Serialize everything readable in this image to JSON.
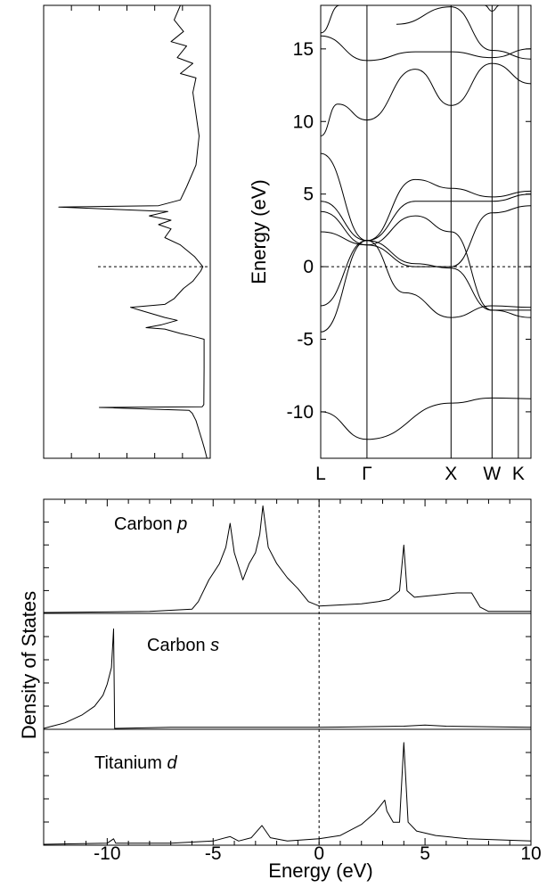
{
  "chart_data": [
    {
      "type": "line",
      "panel": "total-dos-rotated",
      "title": "",
      "xlabel": "",
      "ylabel": "",
      "x_axis": "density of states",
      "y_axis": "energy (eV)",
      "ylim": [
        -13.2,
        18
      ],
      "fermi_level": 0,
      "series": [
        {
          "points": [
            [
              0.05,
              -13.2
            ],
            [
              0.12,
              -12.6
            ],
            [
              0.2,
              -12.0
            ],
            [
              0.3,
              -11.3
            ],
            [
              0.4,
              -10.6
            ],
            [
              0.52,
              -10.1
            ],
            [
              0.62,
              -9.9
            ],
            [
              3.5,
              -9.7
            ],
            [
              0.2,
              -9.65
            ],
            [
              0.15,
              -9.5
            ],
            [
              0.14,
              -7.0
            ],
            [
              0.14,
              -5.0
            ],
            [
              0.5,
              -4.8
            ],
            [
              0.9,
              -4.6
            ],
            [
              1.4,
              -4.3
            ],
            [
              2.0,
              -4.2
            ],
            [
              1.5,
              -4.0
            ],
            [
              1.0,
              -3.7
            ],
            [
              1.4,
              -3.5
            ],
            [
              2.2,
              -3.0
            ],
            [
              2.5,
              -2.8
            ],
            [
              1.4,
              -2.6
            ],
            [
              1.1,
              -2.2
            ],
            [
              0.8,
              -1.5
            ],
            [
              0.5,
              -1.0
            ],
            [
              0.25,
              -0.3
            ],
            [
              0.18,
              0.0
            ],
            [
              0.45,
              0.7
            ],
            [
              0.9,
              1.5
            ],
            [
              1.4,
              2.0
            ],
            [
              1.2,
              2.6
            ],
            [
              1.6,
              2.9
            ],
            [
              1.2,
              3.2
            ],
            [
              1.9,
              3.5
            ],
            [
              1.3,
              3.8
            ],
            [
              4.8,
              4.1
            ],
            [
              1.6,
              4.2
            ],
            [
              0.9,
              4.6
            ],
            [
              0.7,
              5.5
            ],
            [
              0.4,
              7.0
            ],
            [
              0.3,
              9.0
            ],
            [
              0.4,
              10.5
            ],
            [
              0.5,
              12.0
            ],
            [
              0.4,
              13.0
            ],
            [
              0.9,
              13.3
            ],
            [
              0.5,
              14.0
            ],
            [
              1.0,
              14.4
            ],
            [
              0.7,
              15.2
            ],
            [
              1.2,
              15.5
            ],
            [
              0.8,
              16.2
            ],
            [
              1.1,
              17.0
            ],
            [
              0.9,
              18.0
            ]
          ]
        }
      ]
    },
    {
      "type": "line",
      "panel": "band-structure",
      "title": "",
      "xlabel": "",
      "ylabel": "Energy (eV)",
      "xlim": [
        0,
        1
      ],
      "ylim": [
        -13.2,
        18
      ],
      "y_ticks": [
        -10,
        -5,
        0,
        5,
        10,
        15
      ],
      "k_points": [
        {
          "label": "L",
          "x": 0.0
        },
        {
          "label": "Γ",
          "x": 0.22
        },
        {
          "label": "X",
          "x": 0.62
        },
        {
          "label": "W",
          "x": 0.815
        },
        {
          "label": "K",
          "x": 0.94
        }
      ],
      "fermi_level": 0,
      "series": [
        {
          "points": [
            [
              0,
              -10.0
            ],
            [
              0.22,
              -11.9
            ],
            [
              0.62,
              -9.4
            ],
            [
              0.815,
              -9.05
            ],
            [
              1,
              -9.1
            ]
          ]
        },
        {
          "points": [
            [
              0,
              -4.5
            ],
            [
              0.22,
              1.8
            ],
            [
              0.4,
              -1.8
            ],
            [
              0.62,
              -3.5
            ],
            [
              0.815,
              -2.7
            ],
            [
              1,
              -2.8
            ]
          ]
        },
        {
          "points": [
            [
              0,
              -2.7
            ],
            [
              0.22,
              1.8
            ],
            [
              0.45,
              0.2
            ],
            [
              0.62,
              -0.1
            ],
            [
              0.815,
              -3.0
            ],
            [
              1,
              -3.5
            ]
          ]
        },
        {
          "points": [
            [
              0,
              2.4
            ],
            [
              0.22,
              1.5
            ],
            [
              0.45,
              0.0
            ],
            [
              0.62,
              0.0
            ],
            [
              0.815,
              3.7
            ],
            [
              1,
              4.2
            ]
          ]
        },
        {
          "points": [
            [
              0,
              3.8
            ],
            [
              0.22,
              1.5
            ],
            [
              0.45,
              3.5
            ],
            [
              0.62,
              2.4
            ],
            [
              0.815,
              -3.0
            ],
            [
              1,
              -3.0
            ]
          ]
        },
        {
          "points": [
            [
              0,
              4.5
            ],
            [
              0.22,
              1.8
            ],
            [
              0.45,
              4.5
            ],
            [
              0.62,
              4.5
            ],
            [
              0.815,
              4.5
            ],
            [
              1,
              5.0
            ]
          ]
        },
        {
          "points": [
            [
              0,
              7.8
            ],
            [
              0.22,
              1.8
            ],
            [
              0.45,
              6.0
            ],
            [
              0.62,
              5.4
            ],
            [
              0.815,
              4.8
            ],
            [
              1,
              5.2
            ]
          ]
        },
        {
          "points": [
            [
              0,
              9.0
            ],
            [
              0.08,
              11.2
            ],
            [
              0.22,
              10.1
            ],
            [
              0.45,
              13.6
            ],
            [
              0.62,
              11.1
            ],
            [
              0.815,
              14.0
            ],
            [
              1,
              12.6
            ]
          ]
        },
        {
          "points": [
            [
              0,
              15.9
            ],
            [
              0.22,
              14.2
            ],
            [
              0.45,
              14.8
            ],
            [
              0.62,
              14.8
            ],
            [
              0.815,
              14.4
            ],
            [
              1,
              15.0
            ]
          ]
        },
        {
          "points": [
            [
              0,
              16.1
            ],
            [
              0.09,
              18.0
            ]
          ]
        },
        {
          "points": [
            [
              0.18,
              18.0
            ],
            [
              0.22,
              18.0
            ]
          ]
        },
        {
          "points": [
            [
              0.36,
              16.7
            ],
            [
              0.62,
              17.9
            ],
            [
              0.815,
              14.9
            ],
            [
              1,
              14.3
            ]
          ]
        },
        {
          "points": [
            [
              0.78,
              18.0
            ],
            [
              0.815,
              17.6
            ],
            [
              0.85,
              18.0
            ]
          ]
        }
      ]
    },
    {
      "type": "line",
      "panel": "projected-dos",
      "title": "",
      "xlabel": "Energy (eV)",
      "ylabel": "Density of States",
      "xlim": [
        -13,
        10
      ],
      "x_ticks": [
        -10,
        -5,
        0,
        5,
        10
      ],
      "fermi_level": 0,
      "panels": [
        {
          "name": "Carbon p",
          "label_main": "Carbon ",
          "label_orbital": "p",
          "ylim": [
            0,
            1
          ],
          "points": [
            [
              -13,
              0.0
            ],
            [
              -8,
              0.01
            ],
            [
              -6,
              0.03
            ],
            [
              -5.7,
              0.1
            ],
            [
              -5.2,
              0.3
            ],
            [
              -4.7,
              0.45
            ],
            [
              -4.4,
              0.6
            ],
            [
              -4.2,
              0.82
            ],
            [
              -4.0,
              0.55
            ],
            [
              -3.6,
              0.3
            ],
            [
              -3.3,
              0.45
            ],
            [
              -3.0,
              0.55
            ],
            [
              -2.8,
              0.72
            ],
            [
              -2.65,
              0.98
            ],
            [
              -2.4,
              0.6
            ],
            [
              -2.0,
              0.45
            ],
            [
              -1.5,
              0.32
            ],
            [
              -1.0,
              0.22
            ],
            [
              -0.5,
              0.1
            ],
            [
              0,
              0.06
            ],
            [
              1,
              0.07
            ],
            [
              2,
              0.08
            ],
            [
              2.8,
              0.1
            ],
            [
              3.3,
              0.12
            ],
            [
              3.8,
              0.2
            ],
            [
              4.0,
              0.62
            ],
            [
              4.15,
              0.2
            ],
            [
              4.5,
              0.14
            ],
            [
              5.5,
              0.16
            ],
            [
              6.5,
              0.18
            ],
            [
              7.2,
              0.18
            ],
            [
              7.6,
              0.05
            ],
            [
              8,
              0.01
            ],
            [
              10,
              0.01
            ]
          ]
        },
        {
          "name": "Carbon s",
          "label_main": "Carbon ",
          "label_orbital": "s",
          "ylim": [
            0,
            1
          ],
          "points": [
            [
              -13,
              0.0
            ],
            [
              -12.6,
              0.02
            ],
            [
              -12,
              0.05
            ],
            [
              -11.2,
              0.12
            ],
            [
              -10.6,
              0.2
            ],
            [
              -10.2,
              0.3
            ],
            [
              -10.0,
              0.4
            ],
            [
              -9.8,
              0.55
            ],
            [
              -9.7,
              0.9
            ],
            [
              -9.65,
              0.0
            ],
            [
              -7,
              0.01
            ],
            [
              0,
              0.01
            ],
            [
              4,
              0.02
            ],
            [
              5,
              0.03
            ],
            [
              6,
              0.02
            ],
            [
              10,
              0.01
            ]
          ]
        },
        {
          "name": "Titanium d",
          "label_main": "Titanium ",
          "label_orbital": "d",
          "ylim": [
            0,
            1
          ],
          "points": [
            [
              -13,
              0.0
            ],
            [
              -10,
              0.01
            ],
            [
              -9.7,
              0.05
            ],
            [
              -9.6,
              0.01
            ],
            [
              -7,
              0.01
            ],
            [
              -5,
              0.03
            ],
            [
              -4.2,
              0.07
            ],
            [
              -3.8,
              0.03
            ],
            [
              -3.2,
              0.06
            ],
            [
              -2.7,
              0.17
            ],
            [
              -2.3,
              0.06
            ],
            [
              -1.5,
              0.03
            ],
            [
              0,
              0.05
            ],
            [
              1,
              0.08
            ],
            [
              2,
              0.18
            ],
            [
              2.6,
              0.28
            ],
            [
              2.9,
              0.35
            ],
            [
              3.1,
              0.4
            ],
            [
              3.2,
              0.3
            ],
            [
              3.5,
              0.2
            ],
            [
              3.8,
              0.2
            ],
            [
              4.0,
              0.92
            ],
            [
              4.2,
              0.2
            ],
            [
              4.6,
              0.12
            ],
            [
              5.5,
              0.08
            ],
            [
              7,
              0.05
            ],
            [
              10,
              0.03
            ]
          ]
        }
      ]
    }
  ]
}
